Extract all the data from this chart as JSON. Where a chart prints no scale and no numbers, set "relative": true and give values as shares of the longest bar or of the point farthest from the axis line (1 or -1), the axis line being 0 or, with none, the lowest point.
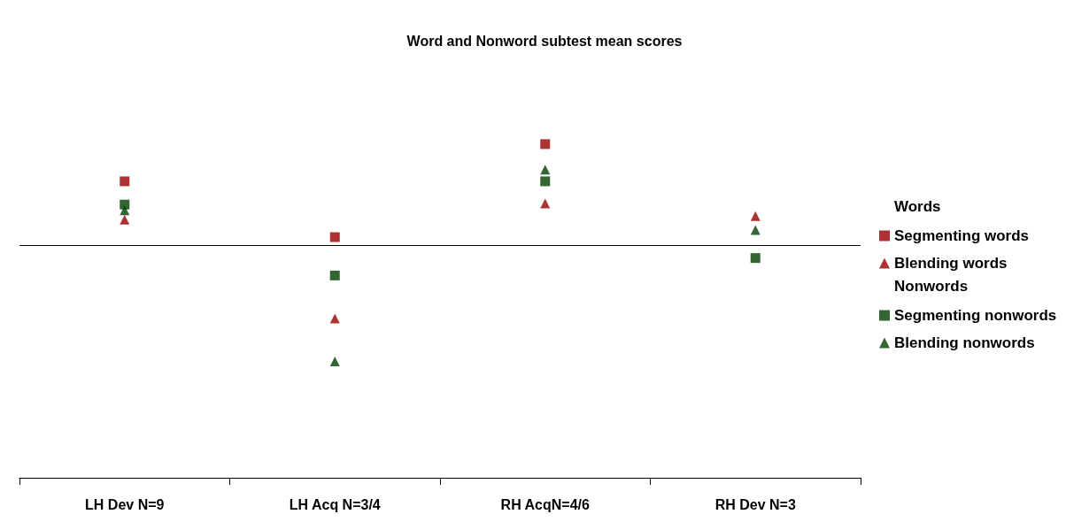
{
  "chart_data": {
    "type": "scatter",
    "title": "Word and Nonword subtest mean scores",
    "relative": true,
    "categories": [
      "LH Dev N=9",
      "LH Acq N=3/4",
      "RH AcqN=4/6",
      "RH Dev N=3"
    ],
    "annotations": [
      "Words",
      "Nonwords"
    ],
    "ref_lines": [
      {
        "axis": "y",
        "value": 0,
        "label": null,
        "color": "#000000"
      }
    ],
    "legend": "right",
    "grid": false,
    "series": [
      {
        "name": "Segmenting words",
        "color": "#990000",
        "marker": "square",
        "values": [
          0.55,
          0.07,
          0.87,
          null
        ]
      },
      {
        "name": "Blending words",
        "color": "#990000",
        "marker": "triangle",
        "values": [
          0.22,
          -0.63,
          0.36,
          0.25
        ]
      },
      {
        "name": "Segmenting nonwords",
        "color": "#004000",
        "marker": "square",
        "values": [
          0.35,
          -0.26,
          0.55,
          -0.11
        ]
      },
      {
        "name": "Blending nonwords",
        "color": "#004000",
        "marker": "triangle",
        "values": [
          0.3,
          -1,
          0.65,
          0.13
        ]
      }
    ]
  }
}
